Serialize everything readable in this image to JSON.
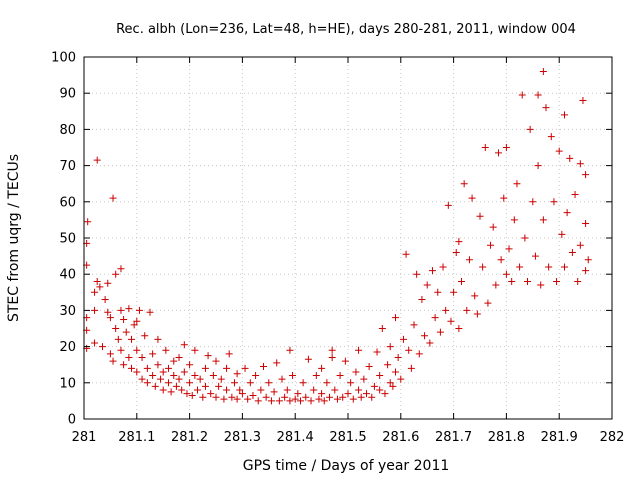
{
  "chart_data": {
    "type": "scatter",
    "title": "Rec. albh (Lon=236, Lat=48, h=HE), days 280-281, 2011, window 004",
    "xlabel": "GPS time / Days of year 2011",
    "ylabel": "STEC from uqrg / TECUs",
    "xlim": [
      281,
      282
    ],
    "ylim": [
      0,
      100
    ],
    "x_ticks": [
      "281",
      "281.1",
      "281.2",
      "281.3",
      "281.4",
      "281.5",
      "281.6",
      "281.7",
      "281.8",
      "281.9",
      "282"
    ],
    "y_ticks": [
      "0",
      "10",
      "20",
      "30",
      "40",
      "50",
      "60",
      "70",
      "80",
      "90",
      "100"
    ],
    "marker": "plus",
    "color": "#cc0000",
    "grid": true,
    "legend": "none",
    "points": [
      [
        281.005,
        19.5
      ],
      [
        281.005,
        24.5
      ],
      [
        281.005,
        28
      ],
      [
        281.005,
        42.5
      ],
      [
        281.005,
        48.5
      ],
      [
        281.007,
        54.5
      ],
      [
        281.02,
        21
      ],
      [
        281.02,
        30
      ],
      [
        281.02,
        35
      ],
      [
        281.025,
        71.5
      ],
      [
        281.025,
        38
      ],
      [
        281.03,
        36.5
      ],
      [
        281.035,
        20
      ],
      [
        281.04,
        33
      ],
      [
        281.045,
        37.5
      ],
      [
        281.045,
        29.5
      ],
      [
        281.05,
        18
      ],
      [
        281.05,
        28
      ],
      [
        281.055,
        16
      ],
      [
        281.055,
        61
      ],
      [
        281.06,
        40
      ],
      [
        281.06,
        25
      ],
      [
        281.065,
        22
      ],
      [
        281.07,
        41.5
      ],
      [
        281.07,
        19
      ],
      [
        281.07,
        30
      ],
      [
        281.075,
        15
      ],
      [
        281.075,
        27.5
      ],
      [
        281.08,
        24
      ],
      [
        281.085,
        17
      ],
      [
        281.085,
        30.5
      ],
      [
        281.09,
        14
      ],
      [
        281.09,
        22
      ],
      [
        281.095,
        26
      ],
      [
        281.1,
        13
      ],
      [
        281.1,
        19
      ],
      [
        281.1,
        27
      ],
      [
        281.105,
        30
      ],
      [
        281.11,
        11
      ],
      [
        281.11,
        17
      ],
      [
        281.115,
        23
      ],
      [
        281.12,
        10
      ],
      [
        281.12,
        14
      ],
      [
        281.125,
        29.5
      ],
      [
        281.13,
        12
      ],
      [
        281.13,
        18
      ],
      [
        281.135,
        9
      ],
      [
        281.14,
        15
      ],
      [
        281.14,
        22
      ],
      [
        281.145,
        11
      ],
      [
        281.15,
        8
      ],
      [
        281.15,
        13
      ],
      [
        281.155,
        19
      ],
      [
        281.16,
        10
      ],
      [
        281.16,
        14
      ],
      [
        281.165,
        7.5
      ],
      [
        281.17,
        12
      ],
      [
        281.17,
        16
      ],
      [
        281.175,
        9
      ],
      [
        281.18,
        11
      ],
      [
        281.18,
        17
      ],
      [
        281.185,
        8
      ],
      [
        281.19,
        13
      ],
      [
        281.19,
        20.5
      ],
      [
        281.195,
        7
      ],
      [
        281.2,
        10
      ],
      [
        281.2,
        15
      ],
      [
        281.205,
        6.5
      ],
      [
        281.21,
        12
      ],
      [
        281.21,
        19
      ],
      [
        281.215,
        8
      ],
      [
        281.22,
        11
      ],
      [
        281.225,
        6
      ],
      [
        281.23,
        14
      ],
      [
        281.23,
        9
      ],
      [
        281.235,
        17.5
      ],
      [
        281.24,
        7
      ],
      [
        281.245,
        12
      ],
      [
        281.25,
        6
      ],
      [
        281.25,
        16
      ],
      [
        281.255,
        9
      ],
      [
        281.26,
        11
      ],
      [
        281.265,
        5.5
      ],
      [
        281.27,
        14
      ],
      [
        281.27,
        8
      ],
      [
        281.275,
        18
      ],
      [
        281.28,
        6
      ],
      [
        281.285,
        10
      ],
      [
        281.29,
        5.5
      ],
      [
        281.29,
        12.5
      ],
      [
        281.295,
        8
      ],
      [
        281.3,
        7
      ],
      [
        281.305,
        14
      ],
      [
        281.31,
        5.5
      ],
      [
        281.315,
        10
      ],
      [
        281.32,
        6.5
      ],
      [
        281.325,
        12
      ],
      [
        281.33,
        5
      ],
      [
        281.335,
        8
      ],
      [
        281.34,
        14.5
      ],
      [
        281.345,
        6
      ],
      [
        281.35,
        10
      ],
      [
        281.355,
        5
      ],
      [
        281.36,
        7.5
      ],
      [
        281.365,
        15.5
      ],
      [
        281.37,
        5
      ],
      [
        281.375,
        11
      ],
      [
        281.38,
        6
      ],
      [
        281.385,
        8
      ],
      [
        281.39,
        5
      ],
      [
        281.39,
        19
      ],
      [
        281.395,
        12
      ],
      [
        281.4,
        5.5
      ],
      [
        281.405,
        7
      ],
      [
        281.41,
        5
      ],
      [
        281.415,
        10
      ],
      [
        281.42,
        6
      ],
      [
        281.425,
        16.5
      ],
      [
        281.43,
        5
      ],
      [
        281.435,
        8
      ],
      [
        281.44,
        12
      ],
      [
        281.445,
        5.5
      ],
      [
        281.45,
        7
      ],
      [
        281.45,
        14
      ],
      [
        281.455,
        5
      ],
      [
        281.46,
        10
      ],
      [
        281.465,
        6
      ],
      [
        281.47,
        17
      ],
      [
        281.47,
        19
      ],
      [
        281.475,
        8
      ],
      [
        281.48,
        5.5
      ],
      [
        281.485,
        12
      ],
      [
        281.49,
        6
      ],
      [
        281.495,
        16
      ],
      [
        281.5,
        7
      ],
      [
        281.505,
        10
      ],
      [
        281.51,
        5.5
      ],
      [
        281.515,
        13
      ],
      [
        281.52,
        8
      ],
      [
        281.52,
        19
      ],
      [
        281.525,
        6
      ],
      [
        281.53,
        11
      ],
      [
        281.535,
        7
      ],
      [
        281.54,
        14.5
      ],
      [
        281.545,
        6
      ],
      [
        281.55,
        9
      ],
      [
        281.555,
        18.5
      ],
      [
        281.56,
        8
      ],
      [
        281.56,
        12
      ],
      [
        281.565,
        25
      ],
      [
        281.57,
        7
      ],
      [
        281.575,
        15
      ],
      [
        281.58,
        10
      ],
      [
        281.58,
        20
      ],
      [
        281.585,
        9
      ],
      [
        281.59,
        28
      ],
      [
        281.59,
        13
      ],
      [
        281.595,
        17
      ],
      [
        281.6,
        11
      ],
      [
        281.605,
        22
      ],
      [
        281.61,
        45.5
      ],
      [
        281.615,
        19
      ],
      [
        281.62,
        14
      ],
      [
        281.625,
        26
      ],
      [
        281.63,
        40
      ],
      [
        281.635,
        18
      ],
      [
        281.64,
        33
      ],
      [
        281.645,
        23
      ],
      [
        281.65,
        37
      ],
      [
        281.655,
        21
      ],
      [
        281.66,
        41
      ],
      [
        281.665,
        28
      ],
      [
        281.67,
        35
      ],
      [
        281.675,
        24
      ],
      [
        281.68,
        42
      ],
      [
        281.685,
        30
      ],
      [
        281.69,
        59
      ],
      [
        281.695,
        27
      ],
      [
        281.7,
        35
      ],
      [
        281.705,
        46
      ],
      [
        281.71,
        25
      ],
      [
        281.71,
        49
      ],
      [
        281.715,
        38
      ],
      [
        281.72,
        65
      ],
      [
        281.725,
        30
      ],
      [
        281.73,
        44
      ],
      [
        281.735,
        61
      ],
      [
        281.74,
        34
      ],
      [
        281.745,
        29
      ],
      [
        281.75,
        56
      ],
      [
        281.755,
        42
      ],
      [
        281.76,
        75
      ],
      [
        281.765,
        32
      ],
      [
        281.77,
        48
      ],
      [
        281.775,
        53
      ],
      [
        281.78,
        37
      ],
      [
        281.785,
        73.5
      ],
      [
        281.79,
        44
      ],
      [
        281.795,
        61
      ],
      [
        281.8,
        40
      ],
      [
        281.8,
        75
      ],
      [
        281.805,
        47
      ],
      [
        281.81,
        38
      ],
      [
        281.815,
        55
      ],
      [
        281.82,
        65
      ],
      [
        281.825,
        42
      ],
      [
        281.83,
        89.5
      ],
      [
        281.835,
        50
      ],
      [
        281.84,
        38
      ],
      [
        281.845,
        80
      ],
      [
        281.85,
        60
      ],
      [
        281.855,
        45
      ],
      [
        281.86,
        70
      ],
      [
        281.86,
        89.5
      ],
      [
        281.865,
        37
      ],
      [
        281.87,
        96
      ],
      [
        281.87,
        55
      ],
      [
        281.875,
        86
      ],
      [
        281.88,
        42
      ],
      [
        281.885,
        78
      ],
      [
        281.89,
        60
      ],
      [
        281.895,
        38
      ],
      [
        281.9,
        74
      ],
      [
        281.905,
        51
      ],
      [
        281.91,
        84
      ],
      [
        281.91,
        42
      ],
      [
        281.915,
        57
      ],
      [
        281.92,
        72
      ],
      [
        281.925,
        46
      ],
      [
        281.93,
        62
      ],
      [
        281.935,
        38
      ],
      [
        281.94,
        70.5
      ],
      [
        281.94,
        48
      ],
      [
        281.945,
        88
      ],
      [
        281.95,
        41
      ],
      [
        281.95,
        54
      ],
      [
        281.95,
        67.5
      ],
      [
        281.955,
        44
      ]
    ]
  }
}
